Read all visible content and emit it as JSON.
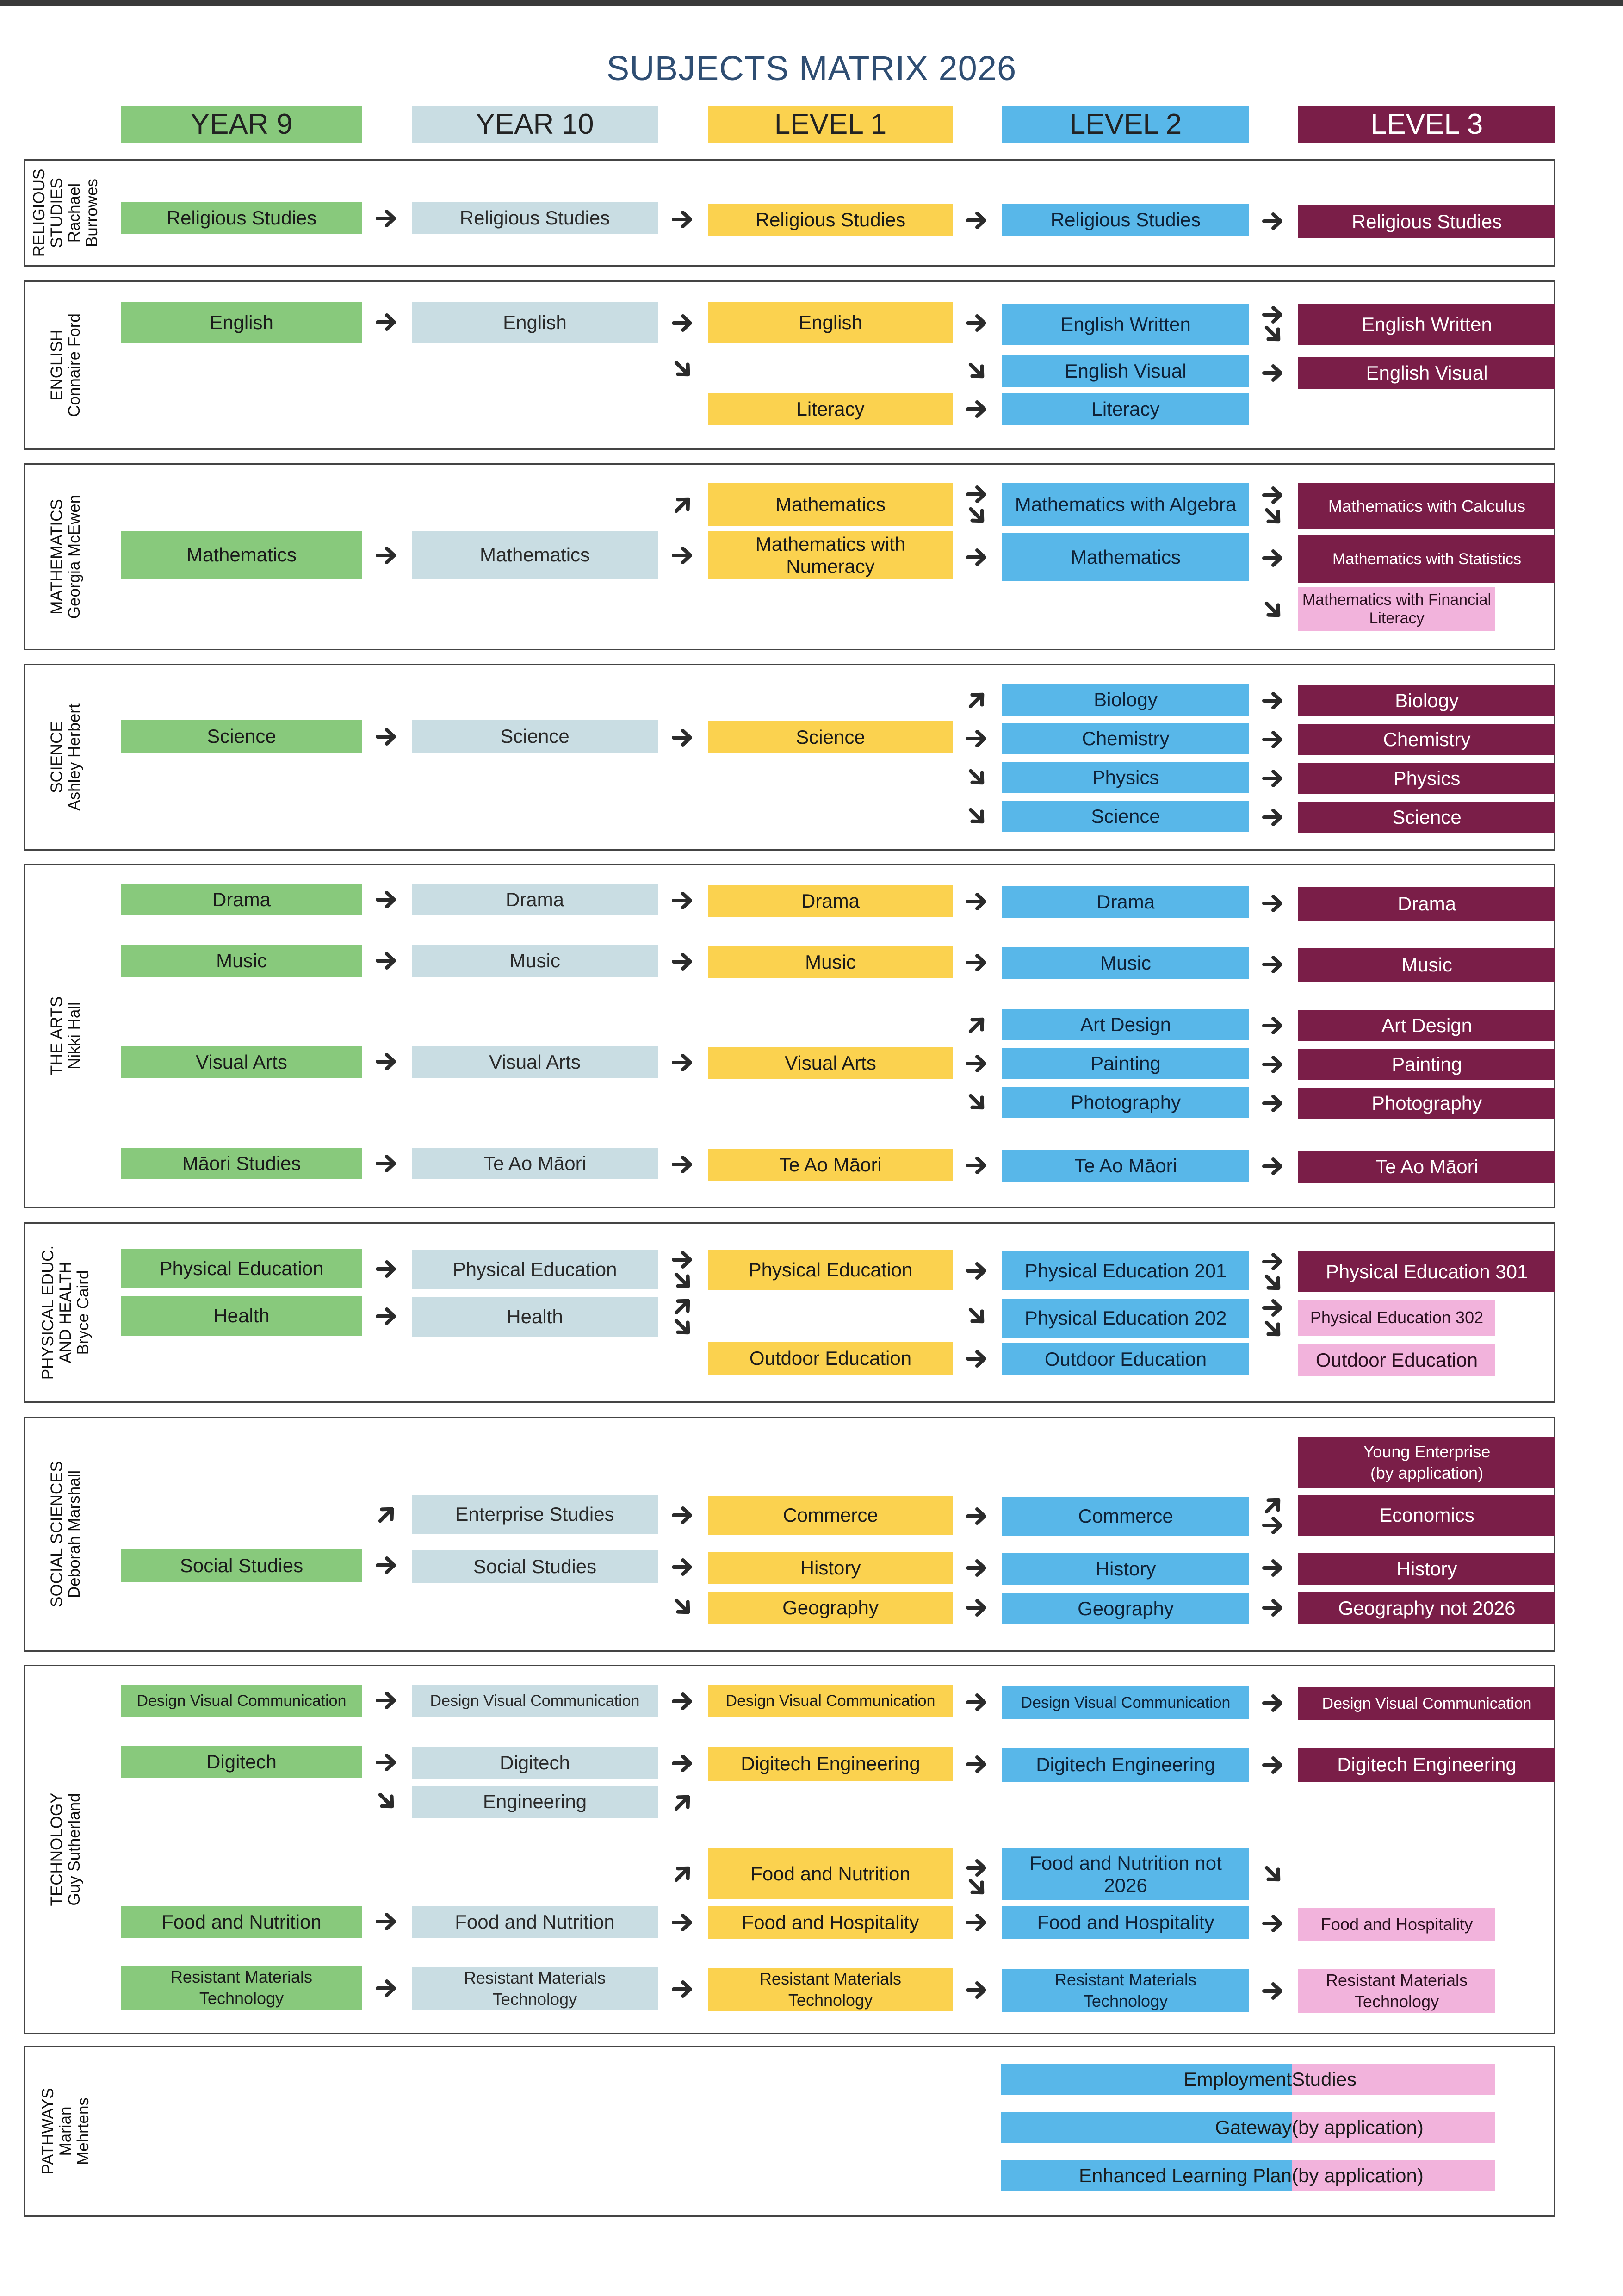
{
  "title": "SUBJECTS MATRIX 2026",
  "columns": [
    "YEAR 9",
    "YEAR 10",
    "LEVEL 1",
    "LEVEL 2",
    "LEVEL 3"
  ],
  "colors": {
    "year9": "#88c97c",
    "year10": "#c9dde3",
    "level1": "#fbd24f",
    "level2": "#58b7e9",
    "level3": "#7a1e48",
    "level3_light": "#f2b3dc",
    "title": "#2f4e73",
    "arrow": "#2b2b2b"
  },
  "departments": [
    {
      "name": [
        "RELIGIOUS",
        "STUDIES"
      ],
      "lead": [
        "Rachael",
        "Burrowes"
      ]
    },
    {
      "name": [
        "ENGLISH"
      ],
      "lead": [
        "Connaire Ford"
      ]
    },
    {
      "name": [
        "MATHEMATICS"
      ],
      "lead": [
        "Georgia McEwen"
      ]
    },
    {
      "name": [
        "SCIENCE"
      ],
      "lead": [
        "Ashley Herbert"
      ]
    },
    {
      "name": [
        "THE ARTS"
      ],
      "lead": [
        "Nikki Hall"
      ]
    },
    {
      "name": [
        "PHYSICAL EDUC.",
        "AND HEALTH"
      ],
      "lead": [
        "Bryce Caird"
      ]
    },
    {
      "name": [
        "SOCIAL SCIENCES"
      ],
      "lead": [
        "Deborah Marshall"
      ]
    },
    {
      "name": [
        "TECHNOLOGY"
      ],
      "lead": [
        "Guy Sutherland"
      ]
    },
    {
      "name": [
        "PATHWAYS"
      ],
      "lead": [
        "Marian",
        "Mehrtens"
      ]
    }
  ],
  "subjects": {
    "rel_y9": "Religious Studies",
    "rel_y10": "Religious Studies",
    "rel_l1": "Religious Studies",
    "rel_l2": "Religious Studies",
    "rel_l3": "Religious Studies",
    "eng_y9": "English",
    "eng_y10": "English",
    "eng_l1": "English",
    "eng_l1_lit": "Literacy",
    "eng_l2_written": "English Written",
    "eng_l2_visual": "English Visual",
    "eng_l2_lit": "Literacy",
    "eng_l3_written": "English Written",
    "eng_l3_visual": "English Visual",
    "math_y9": "Mathematics",
    "math_y10": "Mathematics",
    "math_l1": "Mathematics",
    "math_l1_num": "Mathematics with Numeracy",
    "math_l2_alg": "Mathematics with Algebra",
    "math_l2": "Mathematics",
    "math_l3_calc": "Mathematics with Calculus",
    "math_l3_stat": "Mathematics with Statistics",
    "math_l3_fin": "Mathematics with Financial Literacy",
    "sci_y9": "Science",
    "sci_y10": "Science",
    "sci_l1": "Science",
    "sci_l2_bio": "Biology",
    "sci_l2_chem": "Chemistry",
    "sci_l2_phys": "Physics",
    "sci_l2_sci": "Science",
    "sci_l3_bio": "Biology",
    "sci_l3_chem": "Chemistry",
    "sci_l3_phys": "Physics",
    "sci_l3_sci": "Science",
    "drama_y9": "Drama",
    "drama_y10": "Drama",
    "drama_l1": "Drama",
    "drama_l2": "Drama",
    "drama_l3": "Drama",
    "music_y9": "Music",
    "music_y10": "Music",
    "music_l1": "Music",
    "music_l2": "Music",
    "music_l3": "Music",
    "va_y9": "Visual Arts",
    "va_y10": "Visual Arts",
    "va_l1": "Visual Arts",
    "art_l2_design": "Art Design",
    "art_l2_paint": "Painting",
    "art_l2_photo": "Photography",
    "art_l3_design": "Art Design",
    "art_l3_paint": "Painting",
    "art_l3_photo": "Photography",
    "maori_y9": "Māori Studies",
    "maori_y10": "Te Ao Māori",
    "maori_l1": "Te Ao Māori",
    "maori_l2": "Te Ao Māori",
    "maori_l3": "Te Ao Māori",
    "pe_y9": "Physical Education",
    "health_y9": "Health",
    "pe_y10": "Physical Education",
    "health_y10": "Health",
    "pe_l1": "Physical Education",
    "outdoor_l1": "Outdoor Education",
    "pe_l2_201": "Physical Education 201",
    "pe_l2_202": "Physical Education 202",
    "outdoor_l2": "Outdoor Education",
    "pe_l3_301": "Physical Education 301",
    "pe_l3_302": "Physical Education 302",
    "outdoor_l3": "Outdoor Education",
    "ss_y9": "Social Studies",
    "ent_y10": "Enterprise Studies",
    "ss_y10": "Social Studies",
    "comm_l1": "Commerce",
    "hist_l1": "History",
    "geo_l1": "Geography",
    "comm_l2": "Commerce",
    "hist_l2": "History",
    "geo_l2": "Geography",
    "ye_l3": "Young Enterprise (by application)",
    "econ_l3": "Economics",
    "hist_l3": "History",
    "geo_l3": "Geography not 2026",
    "dvc_y9": "Design Visual Communication",
    "dvc_y10": "Design Visual Communication",
    "dvc_l1": "Design Visual Communication",
    "dvc_l2": "Design Visual Communication",
    "dvc_l3": "Design Visual Communication",
    "dig_y9": "Digitech",
    "dig_y10": "Digitech",
    "eng_y10_tech": "Engineering",
    "dig_l1": "Digitech Engineering",
    "dig_l2": "Digitech Engineering",
    "dig_l3": "Digitech Engineering",
    "fn_y9": "Food and Nutrition",
    "fn_y10": "Food and Nutrition",
    "fn_l1": "Food and Nutrition",
    "fh_l1": "Food and Hospitality",
    "fn_l2": "Food and Nutrition not 2026",
    "fh_l2": "Food and Hospitality",
    "fh_l3": "Food and Hospitality",
    "rm_y9": "Resistant Materials Technology",
    "rm_y10": "Resistant Materials Technology",
    "rm_l1": "Resistant Materials Technology",
    "rm_l2": "Resistant Materials Technology",
    "rm_l3": "Resistant Materials Technology"
  },
  "pathways": [
    {
      "left": "Employment",
      "right": " Studies"
    },
    {
      "left": "Gateway",
      "right": " (by application)"
    },
    {
      "left": "Enhanced Learning Plan",
      "right": " (by application)"
    }
  ]
}
